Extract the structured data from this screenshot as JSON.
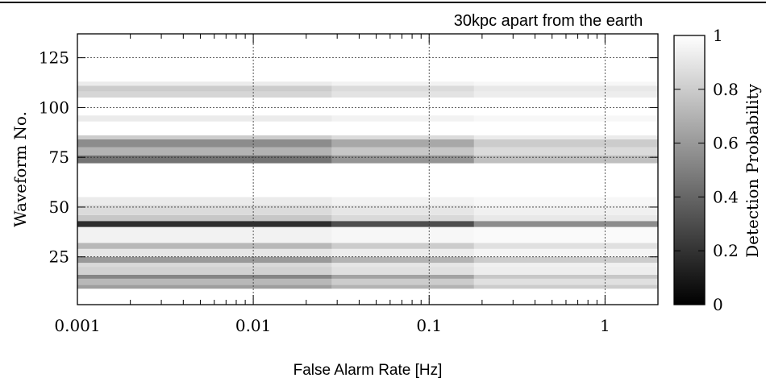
{
  "chart_data": {
    "type": "heatmap",
    "title": "30kpc apart from the earth",
    "xlabel": "False Alarm Rate [Hz]",
    "ylabel": "Waveform No.",
    "colorbar_label": "Detection Probability",
    "x_scale": "log",
    "xlim": [
      0.001,
      2.0
    ],
    "ylim": [
      1,
      137
    ],
    "zlim": [
      0,
      1
    ],
    "grid": true,
    "x_ticks": [
      0.001,
      0.01,
      0.1,
      1
    ],
    "x_tick_labels": [
      "0.001",
      "0.01",
      "0.1",
      "1"
    ],
    "y_ticks": [
      25,
      50,
      75,
      100,
      125
    ],
    "y_tick_labels": [
      "25",
      "50",
      "75",
      "100",
      "125"
    ],
    "colorbar_ticks": [
      0,
      0.2,
      0.4,
      0.6,
      0.8,
      1
    ],
    "colorbar_tick_labels": [
      "0",
      "0.2",
      "0.4",
      "0.6",
      "0.8",
      "1"
    ],
    "colormap": [
      "#000000",
      "#ffffff"
    ],
    "x_bins": [
      0.001,
      0.028,
      0.18,
      2.0
    ],
    "rows": [
      {
        "y": [
          9,
          11
        ],
        "z": [
          0.62,
          0.7,
          0.8,
          0.92
        ]
      },
      {
        "y": [
          11,
          14
        ],
        "z": [
          0.72,
          0.8,
          0.88,
          0.95
        ]
      },
      {
        "y": [
          14,
          16
        ],
        "z": [
          0.52,
          0.64,
          0.78,
          0.9
        ]
      },
      {
        "y": [
          16,
          20
        ],
        "z": [
          0.82,
          0.88,
          0.93,
          0.97
        ]
      },
      {
        "y": [
          20,
          22
        ],
        "z": [
          0.85,
          0.9,
          0.94,
          0.97
        ]
      },
      {
        "y": [
          22,
          25
        ],
        "z": [
          0.6,
          0.7,
          0.8,
          0.92
        ]
      },
      {
        "y": [
          25,
          29
        ],
        "z": [
          0.9,
          0.93,
          0.96,
          0.98
        ]
      },
      {
        "y": [
          29,
          32
        ],
        "z": [
          0.72,
          0.8,
          0.88,
          0.95
        ]
      },
      {
        "y": [
          32,
          40
        ],
        "z": [
          0.95,
          0.97,
          0.98,
          0.99
        ]
      },
      {
        "y": [
          40,
          43
        ],
        "z": [
          0.18,
          0.3,
          0.55,
          0.85
        ]
      },
      {
        "y": [
          43,
          46
        ],
        "z": [
          0.78,
          0.85,
          0.91,
          0.96
        ]
      },
      {
        "y": [
          46,
          51
        ],
        "z": [
          0.86,
          0.9,
          0.94,
          0.97
        ]
      },
      {
        "y": [
          51,
          55
        ],
        "z": [
          0.92,
          0.95,
          0.97,
          0.99
        ]
      },
      {
        "y": [
          72,
          76
        ],
        "z": [
          0.45,
          0.58,
          0.75,
          0.9
        ]
      },
      {
        "y": [
          76,
          80
        ],
        "z": [
          0.7,
          0.78,
          0.86,
          0.94
        ]
      },
      {
        "y": [
          80,
          84
        ],
        "z": [
          0.55,
          0.66,
          0.8,
          0.92
        ]
      },
      {
        "y": [
          84,
          86
        ],
        "z": [
          0.8,
          0.86,
          0.92,
          0.96
        ]
      },
      {
        "y": [
          93,
          96
        ],
        "z": [
          0.92,
          0.95,
          0.97,
          0.99
        ]
      },
      {
        "y": [
          105,
          108
        ],
        "z": [
          0.84,
          0.89,
          0.93,
          0.96
        ]
      },
      {
        "y": [
          108,
          111
        ],
        "z": [
          0.8,
          0.86,
          0.91,
          0.95
        ]
      },
      {
        "y": [
          111,
          113
        ],
        "z": [
          0.92,
          0.95,
          0.97,
          0.98
        ]
      }
    ]
  }
}
